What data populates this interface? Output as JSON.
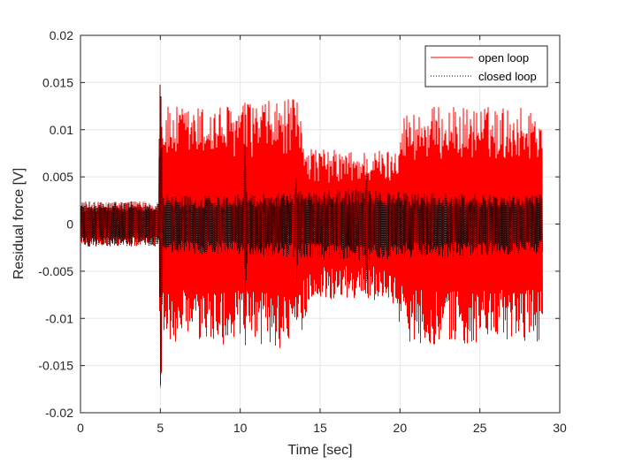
{
  "chart_data": {
    "type": "line",
    "title": "",
    "xlabel": "Time [sec]",
    "ylabel": "Residual force [V]",
    "xlim": [
      0,
      30
    ],
    "ylim": [
      -0.02,
      0.02
    ],
    "xticks": [
      0,
      5,
      10,
      15,
      20,
      25,
      30
    ],
    "xtick_labels": [
      "0",
      "5",
      "10",
      "15",
      "20",
      "25",
      "30"
    ],
    "yticks": [
      -0.02,
      -0.015,
      -0.01,
      -0.005,
      0,
      0.005,
      0.01,
      0.015,
      0.02
    ],
    "ytick_labels": [
      "-0.02",
      "-0.015",
      "-0.01",
      "-0.005",
      "0",
      "0.005",
      "0.01",
      "0.015",
      "0.02"
    ],
    "grid": true,
    "legend_position": "top-right",
    "series": [
      {
        "name": "open loop",
        "color": "#ff0000",
        "style": "solid",
        "envelope": {
          "t": [
            0,
            5.0,
            5.05,
            7,
            10,
            12.5,
            13.5,
            14.3,
            15,
            17,
            19.5,
            20.3,
            22,
            25,
            28.9
          ],
          "upper": [
            0.0024,
            0.0024,
            0.0125,
            0.0125,
            0.0128,
            0.0132,
            0.0133,
            0.0085,
            0.008,
            0.0078,
            0.008,
            0.012,
            0.0125,
            0.0125,
            0.0125
          ],
          "lower": [
            -0.0024,
            -0.0024,
            -0.0125,
            -0.0128,
            -0.0128,
            -0.0132,
            -0.0134,
            -0.0085,
            -0.008,
            -0.008,
            -0.0082,
            -0.0125,
            -0.0128,
            -0.0128,
            -0.0125
          ]
        },
        "peaks": {
          "t": [
            5.0,
            10.3
          ],
          "upper": [
            0.016,
            0.0083
          ],
          "lower": [
            -0.0185,
            -0.0088
          ]
        }
      },
      {
        "name": "closed loop",
        "color": "#000000",
        "style": "dotted",
        "envelope": {
          "t": [
            0,
            5.0,
            5.05,
            7,
            10,
            14,
            17,
            20,
            25,
            28.9
          ],
          "upper": [
            0.0024,
            0.0024,
            0.0032,
            0.003,
            0.0032,
            0.0036,
            0.0038,
            0.0034,
            0.0032,
            0.0032
          ],
          "lower": [
            -0.0024,
            -0.0024,
            -0.0032,
            -0.0032,
            -0.0034,
            -0.0036,
            -0.004,
            -0.0036,
            -0.0034,
            -0.0032
          ]
        },
        "peaks": {
          "t": [
            5.0,
            10.3,
            13.5,
            17.9
          ],
          "upper": [
            0.016,
            0.0085,
            0.005,
            0.006
          ],
          "lower": [
            -0.0188,
            -0.0088,
            -0.006,
            -0.0068
          ]
        }
      }
    ]
  }
}
